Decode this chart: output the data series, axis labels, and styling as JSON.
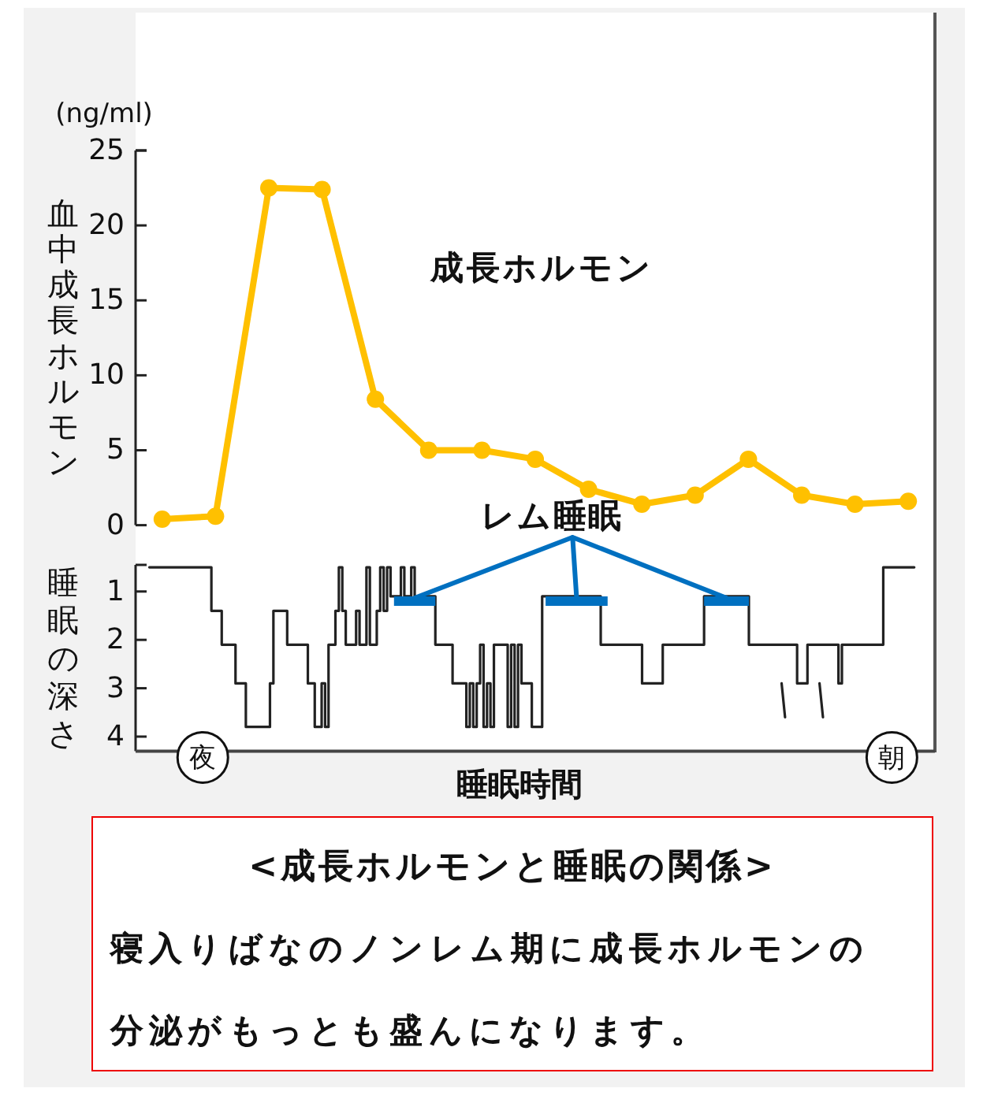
{
  "chart_data": [
    {
      "type": "line",
      "ylabel": "血中成長ホルモン",
      "annotations": [
        "(ng/ml)"
      ],
      "categories": [
        null,
        null,
        null,
        null,
        null,
        null,
        null,
        null,
        null,
        null,
        null,
        null,
        null,
        null,
        null
      ],
      "series": [
        {
          "name": "成長ホルモン",
          "color": "#ffc000",
          "values": [
            0.4,
            0.6,
            22.5,
            22.4,
            8.4,
            5.0,
            5.0,
            4.4,
            2.4,
            1.4,
            2.0,
            4.4,
            2.0,
            1.4,
            1.6
          ]
        }
      ],
      "ylim": [
        0,
        25
      ],
      "yticks": [
        0,
        5,
        10,
        15,
        20,
        25
      ],
      "marker": "circle",
      "tick_labels": "y"
    },
    {
      "type": "step",
      "xlabel": "睡眠時間",
      "ylabel": "睡眠の深さ",
      "categories": [
        null,
        null,
        null,
        null,
        null,
        null,
        null,
        null,
        null,
        null,
        null,
        null,
        null,
        null,
        null,
        null,
        null,
        null,
        null,
        "夜",
        null,
        null,
        null,
        null,
        null,
        null,
        null,
        null,
        null,
        null,
        null,
        null,
        null,
        null,
        null,
        null,
        null,
        null,
        null,
        null,
        null,
        null,
        null,
        null,
        null,
        null,
        null,
        null,
        null,
        null,
        null,
        null,
        null,
        null,
        null,
        null,
        null,
        null,
        null,
        null,
        null,
        null,
        null,
        null,
        null,
        null,
        null,
        null,
        null,
        null,
        null,
        null,
        null,
        null,
        null,
        null,
        null,
        null,
        null,
        null,
        null,
        null,
        null,
        null,
        null,
        null,
        null,
        null,
        null,
        null,
        null,
        null,
        null,
        null,
        null,
        null,
        null,
        null,
        null,
        null,
        null,
        null,
        null,
        null,
        null,
        null,
        null,
        null,
        null,
        null,
        null,
        null,
        null,
        null,
        null,
        null,
        null,
        null,
        null,
        null,
        null,
        null,
        null,
        null,
        null,
        null,
        null,
        null,
        null,
        null,
        null,
        null,
        null,
        null,
        null,
        null,
        null,
        null,
        null,
        null,
        null,
        null,
        null,
        null,
        null,
        null,
        null,
        null,
        null,
        null,
        null,
        null,
        null,
        null,
        null,
        null,
        null,
        null,
        null,
        null,
        null,
        null,
        null,
        null,
        null,
        null,
        null,
        null,
        null,
        null,
        null,
        null,
        null,
        null,
        null,
        null,
        null,
        null,
        null,
        null,
        null,
        null,
        null,
        null,
        null,
        null,
        null,
        null,
        null,
        null,
        null,
        null,
        null,
        null,
        null,
        null,
        null,
        null,
        null,
        null,
        null,
        null,
        null,
        null,
        null,
        null,
        null,
        null,
        null,
        null,
        null,
        null,
        null,
        null,
        null,
        null,
        null,
        null,
        null,
        "朝",
        null,
        null,
        null,
        null,
        null,
        null,
        null,
        null,
        null,
        null,
        null,
        null
      ],
      "series": [
        {
          "color": "#222222",
          "values": [
            null,
            null,
            null,
            null,
            0.5,
            0.5,
            0.5,
            0.5,
            0.5,
            0.5,
            0.5,
            0.5,
            0.5,
            0.5,
            0.5,
            0.5,
            0.5,
            0.5,
            0.5,
            0.5,
            0.5,
            0.5,
            1.4,
            1.4,
            1.4,
            2.1,
            2.1,
            2.1,
            2.1,
            2.9,
            2.9,
            2.9,
            3.8,
            3.8,
            3.8,
            3.8,
            3.8,
            3.8,
            3.8,
            2.9,
            1.4,
            1.4,
            1.4,
            1.4,
            2.1,
            2.1,
            2.1,
            2.1,
            2.1,
            2.1,
            2.9,
            2.9,
            3.8,
            3.8,
            2.9,
            3.8,
            2.1,
            2.1,
            1.4,
            0.5,
            1.4,
            2.1,
            2.1,
            2.1,
            1.4,
            2.1,
            2.1,
            0.5,
            2.1,
            2.1,
            1.4,
            0.5,
            1.4,
            0.5,
            1.1,
            1.1,
            1.1,
            0.5,
            1.1,
            1.1,
            0.5,
            1.1,
            1.1,
            1.1,
            1.1,
            1.1,
            1.1,
            2.1,
            2.1,
            2.1,
            2.1,
            2.1,
            2.9,
            2.9,
            2.9,
            2.9,
            3.8,
            2.9,
            3.8,
            2.9,
            2.1,
            3.8,
            2.9,
            3.8,
            2.1,
            2.1,
            2.1,
            2.1,
            3.8,
            2.1,
            3.8,
            2.1,
            2.9,
            2.9,
            2.9,
            3.8,
            3.8,
            3.8,
            1.1,
            1.1,
            1.1,
            1.1,
            1.1,
            1.1,
            1.1,
            1.1,
            1.1,
            1.1,
            1.1,
            1.1,
            1.1,
            1.1,
            1.1,
            1.1,
            1.1,
            2.1,
            2.1,
            2.1,
            2.1,
            2.1,
            2.1,
            2.1,
            2.1,
            2.1,
            2.1,
            2.1,
            2.1,
            2.9,
            2.9,
            2.9,
            2.9,
            2.9,
            2.9,
            2.1,
            2.1,
            2.1,
            2.1,
            2.1,
            2.1,
            2.1,
            2.1,
            2.1,
            2.1,
            2.1,
            2.1,
            1.1,
            1.1,
            1.1,
            1.1,
            1.1,
            1.1,
            1.1,
            1.1,
            1.1,
            1.1,
            1.1,
            1.1,
            1.1,
            2.1,
            2.1,
            2.1,
            2.1,
            2.1,
            2.1,
            2.1,
            2.1,
            2.1,
            2.1,
            2.1,
            2.1,
            2.1,
            2.1,
            2.9,
            2.9,
            2.9,
            2.1,
            2.1,
            2.1,
            2.1,
            2.1,
            2.1,
            2.1,
            2.1,
            2.1,
            2.9,
            2.1,
            2.1,
            2.1,
            2.1,
            2.1,
            2.1,
            2.1,
            2.1,
            2.1,
            2.1,
            2.1,
            2.1,
            0.5,
            0.5,
            0.5,
            0.5,
            0.5,
            0.5,
            0.5,
            0.5,
            0.5,
            null,
            null,
            null,
            null,
            null,
            null
          ]
        },
        {
          "type": "line",
          "color": "#222222",
          "values": [
            null,
            null,
            null,
            null,
            null,
            null,
            null,
            null,
            null,
            null,
            null,
            null,
            null,
            null,
            null,
            null,
            null,
            null,
            null,
            null,
            null,
            null,
            null,
            null,
            null,
            null,
            null,
            null,
            null,
            null,
            null,
            null,
            null,
            null,
            null,
            null,
            null,
            null,
            null,
            null,
            null,
            null,
            null,
            null,
            null,
            null,
            null,
            null,
            null,
            null,
            null,
            null,
            null,
            null,
            null,
            null,
            null,
            null,
            null,
            null,
            null,
            null,
            null,
            null,
            null,
            null,
            null,
            null,
            null,
            null,
            null,
            null,
            null,
            null,
            null,
            null,
            null,
            null,
            null,
            null,
            null,
            null,
            null,
            null,
            null,
            null,
            null,
            null,
            null,
            null,
            null,
            null,
            null,
            null,
            null,
            null,
            null,
            null,
            null,
            null,
            null,
            null,
            null,
            null,
            null,
            null,
            null,
            null,
            null,
            null,
            null,
            null,
            null,
            null,
            null,
            null,
            null,
            null,
            null,
            null,
            null,
            null,
            null,
            null,
            null,
            null,
            null,
            null,
            null,
            null,
            null,
            null,
            null,
            null,
            null,
            null,
            null,
            null,
            null,
            null,
            null,
            null,
            null,
            null,
            null,
            null,
            null,
            null,
            null,
            null,
            null,
            null,
            null,
            null,
            null,
            null,
            null,
            null,
            null,
            null,
            null,
            null,
            null,
            null,
            null,
            null,
            null,
            null,
            null,
            null,
            null,
            null,
            null,
            null,
            null,
            null,
            null,
            null,
            null,
            null,
            null,
            null,
            null,
            null,
            null,
            null,
            null,
            2.9,
            3.6,
            null,
            null,
            null,
            null,
            null,
            null,
            null,
            null,
            null,
            2.9,
            3.6,
            null,
            null,
            null,
            null,
            null,
            null,
            null,
            null,
            null,
            null,
            null,
            null,
            null,
            null,
            null,
            null,
            null,
            null,
            null,
            null,
            null,
            null,
            null,
            null,
            null,
            null,
            null,
            null,
            null,
            null,
            null,
            null
          ]
        },
        {
          "name": "レム睡眠",
          "color": "#0070c0",
          "values": [
            null,
            null,
            null,
            null,
            null,
            null,
            null,
            null,
            null,
            null,
            null,
            null,
            null,
            null,
            null,
            null,
            null,
            null,
            null,
            null,
            null,
            null,
            null,
            null,
            null,
            null,
            null,
            null,
            null,
            null,
            null,
            null,
            null,
            null,
            null,
            null,
            null,
            null,
            null,
            null,
            null,
            null,
            null,
            null,
            null,
            null,
            null,
            null,
            null,
            null,
            null,
            null,
            null,
            null,
            null,
            null,
            null,
            null,
            null,
            null,
            null,
            null,
            null,
            null,
            null,
            null,
            null,
            null,
            null,
            null,
            null,
            null,
            null,
            null,
            null,
            1.2,
            1.2,
            1.2,
            1.2,
            1.2,
            1.2,
            1.2,
            1.2,
            1.2,
            1.2,
            1.2,
            1.2,
            null,
            null,
            null,
            null,
            null,
            null,
            null,
            null,
            null,
            null,
            null,
            null,
            null,
            null,
            null,
            null,
            null,
            null,
            null,
            null,
            null,
            null,
            null,
            null,
            null,
            null,
            null,
            null,
            null,
            null,
            null,
            null,
            1.2,
            1.2,
            1.2,
            1.2,
            1.2,
            1.2,
            1.2,
            1.2,
            1.2,
            1.2,
            1.2,
            1.2,
            1.2,
            1.2,
            1.2,
            1.2,
            1.2,
            1.2,
            null,
            null,
            null,
            null,
            null,
            null,
            null,
            null,
            null,
            null,
            null,
            null,
            null,
            null,
            null,
            null,
            null,
            null,
            null,
            null,
            null,
            null,
            null,
            null,
            null,
            null,
            null,
            null,
            1.2,
            1.2,
            1.2,
            1.2,
            1.2,
            1.2,
            1.2,
            1.2,
            1.2,
            1.2,
            1.2,
            1.2,
            1.2,
            null,
            null,
            null,
            null,
            null,
            null,
            null,
            null,
            null,
            null,
            null,
            null,
            null,
            null,
            null,
            null,
            null,
            null,
            null,
            null,
            null,
            null,
            null,
            null,
            null,
            null,
            null,
            null,
            null,
            null,
            null,
            null,
            null,
            null,
            null,
            null,
            null,
            null,
            null,
            null,
            null,
            null,
            null,
            null,
            null,
            null,
            null,
            null,
            null,
            null,
            null,
            null,
            null,
            null
          ]
        }
      ],
      "ylim": [
        4.3,
        0.45
      ],
      "yticks": [
        1,
        2,
        3,
        4
      ]
    },
    {
      "type": "other",
      "title": "<成長ホルモンと睡眠の関係>",
      "annotations": [
        "寝入りばなのノンレム期に成長ホルモンの分泌がもっとも盛んになります。"
      ]
    }
  ]
}
